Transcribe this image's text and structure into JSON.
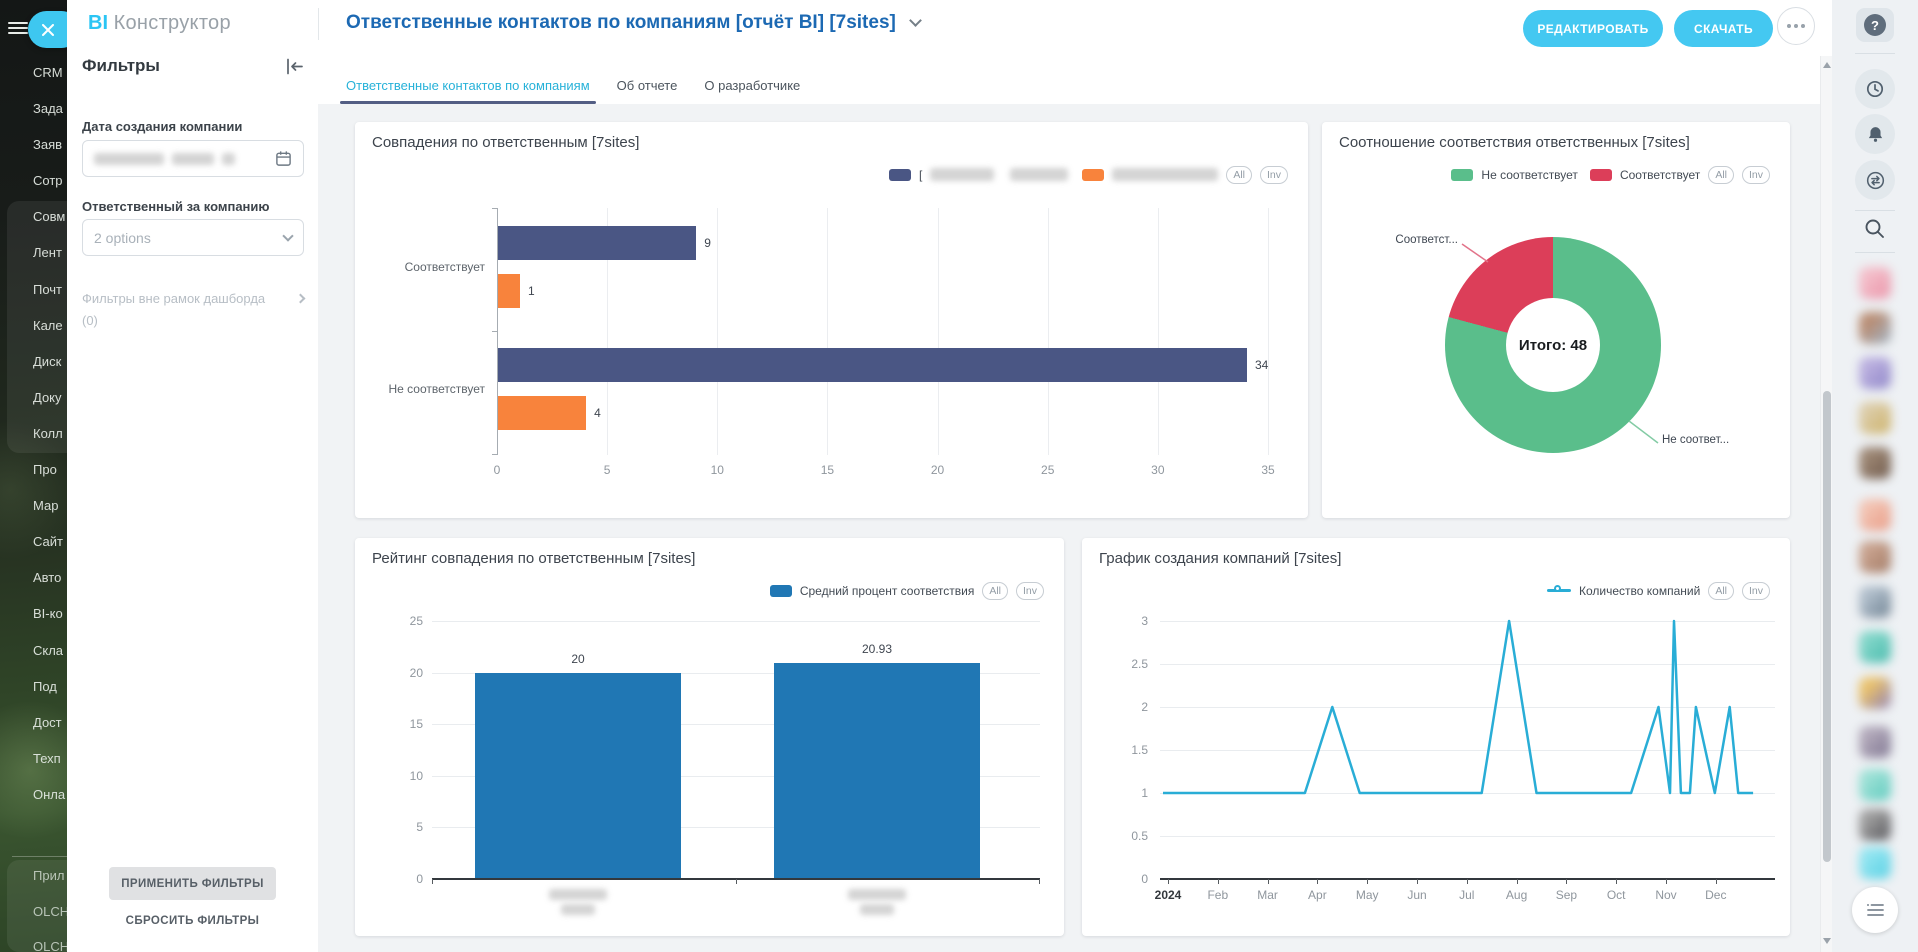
{
  "app": {
    "logo_bi": "BI",
    "logo_name": "Конструктор",
    "page_title": "Ответственные контактов по компаниям [отчёт BI] [7sites]",
    "edit_button": "РЕДАКТИРОВАТЬ",
    "download_button": "СКАЧАТЬ"
  },
  "left_menu": {
    "items": [
      "CRM",
      "Зада",
      "Заяв",
      "Сотр",
      "Совм",
      "Лент",
      "Почт",
      "Кале",
      "Диск",
      "Доку",
      "Колл",
      "Про",
      "Мар",
      "Сайт",
      "Авто",
      "BI-ко",
      "Скла",
      "Под",
      "Дост",
      "Техп",
      "Онла"
    ],
    "bottom_items": [
      "Прил",
      "OLCH",
      "OLCH"
    ]
  },
  "filters": {
    "heading": "Фильтры",
    "date_label": "Дата создания компании",
    "date_value_blurred": true,
    "owner_label": "Ответственный за компанию",
    "owner_value": "2 options",
    "outer_label": "Фильтры вне рамок дашборда",
    "outer_count": "(0)",
    "apply": "ПРИМЕНИТЬ ФИЛЬТРЫ",
    "reset": "СБРОСИТЬ ФИЛЬТРЫ"
  },
  "tabs": [
    "Ответственные контактов по компаниям",
    "Об отчете",
    "О разработчике"
  ],
  "rail": {
    "help_glyph": "?",
    "icons": [
      "help",
      "timer",
      "bell",
      "chat-exchange",
      "search",
      "list-menu"
    ],
    "avatars": [
      {
        "c1": "#f3bcc8",
        "c2": "#ea93a8"
      },
      {
        "c1": "#b98c72",
        "c2": "#9fb2c4"
      },
      {
        "c1": "#b9aede",
        "c2": "#8e85c8"
      },
      {
        "c1": "#dbcba6",
        "c2": "#cdb268"
      },
      {
        "c1": "#9c8673",
        "c2": "#6e594b"
      },
      {
        "c1": "#f2c2b1",
        "c2": "#e99b85"
      },
      {
        "c1": "#c8a28e",
        "c2": "#a27a65"
      },
      {
        "c1": "#afbdca",
        "c2": "#6e8191"
      },
      {
        "c1": "#80d5c8",
        "c2": "#47baac"
      },
      {
        "c1": "#eac26b",
        "c2": "#8e80b6"
      },
      {
        "c1": "#b1a8b9",
        "c2": "#7e7591"
      },
      {
        "c1": "#9be0d5",
        "c2": "#5dcabe"
      },
      {
        "c1": "#9e9e9e",
        "c2": "#55555a"
      },
      {
        "c1": "#90e4f0",
        "c2": "#57d0e4"
      }
    ]
  },
  "chart_data": [
    {
      "type": "bar",
      "orientation": "horizontal",
      "title": "Совпадения по ответственным [7sites]",
      "categories": [
        "Соответствует",
        "Не соответствует"
      ],
      "series": [
        {
          "name": "",
          "name_blurred": true,
          "color": "#4a5684",
          "values": [
            9,
            34
          ]
        },
        {
          "name": "",
          "name_blurred": true,
          "color": "#f8833c",
          "values": [
            1,
            4
          ]
        }
      ],
      "xlim": [
        0,
        35
      ],
      "xticks": [
        "0",
        "5",
        "10",
        "15",
        "20",
        "25",
        "30",
        "35"
      ],
      "legend_bracket": "[",
      "legend_controls": [
        "All",
        "Inv"
      ],
      "grid": "vertical"
    },
    {
      "type": "pie",
      "title": "Соотношение соответствия ответственных [7sites]",
      "labels": [
        "Не соответствует",
        "Соответствует"
      ],
      "values": [
        38,
        10
      ],
      "total": 48,
      "colors": [
        "#5abe8b",
        "#dc3e59"
      ],
      "center_label": "Итого: 48",
      "callout_labels": [
        "Соответст...",
        "Не соответ..."
      ],
      "legend_controls": [
        "All",
        "Inv"
      ]
    },
    {
      "type": "bar",
      "orientation": "vertical",
      "title": "Рейтинг совпадения по ответственным [7sites]",
      "series": [
        {
          "name": "Средний процент соответствия",
          "color": "#2077b4",
          "values": [
            20,
            20.93
          ]
        }
      ],
      "value_labels": [
        "20",
        "20.93"
      ],
      "categories_blurred": true,
      "ylim": [
        0,
        25
      ],
      "yticks": [
        "0",
        "5",
        "10",
        "15",
        "20",
        "25"
      ],
      "legend_controls": [
        "All",
        "Inv"
      ],
      "grid": "horizontal"
    },
    {
      "type": "line",
      "title": "График создания компаний [7sites]",
      "series_name": "Количество компаний",
      "color": "#29add6",
      "ylim": [
        0,
        3
      ],
      "yticks": [
        "0",
        "0.5",
        "1",
        "1.5",
        "2",
        "2.5",
        "3"
      ],
      "xticks": [
        "2024",
        "Feb",
        "Mar",
        "Apr",
        "May",
        "Jun",
        "Jul",
        "Aug",
        "Sep",
        "Oct",
        "Nov",
        "Dec"
      ],
      "points_month_value": [
        [
          -0.1,
          1
        ],
        [
          2.75,
          1
        ],
        [
          3.3,
          2
        ],
        [
          3.85,
          1
        ],
        [
          6.3,
          1
        ],
        [
          6.85,
          3
        ],
        [
          7.4,
          1
        ],
        [
          9.3,
          1
        ],
        [
          9.85,
          2
        ],
        [
          10.08,
          1
        ],
        [
          10.16,
          3
        ],
        [
          10.3,
          1
        ],
        [
          10.48,
          1
        ],
        [
          10.6,
          2
        ],
        [
          10.98,
          1
        ],
        [
          11.28,
          2
        ],
        [
          11.45,
          1
        ],
        [
          11.75,
          1
        ]
      ],
      "legend_controls": [
        "All",
        "Inv"
      ],
      "grid": "horizontal"
    }
  ]
}
